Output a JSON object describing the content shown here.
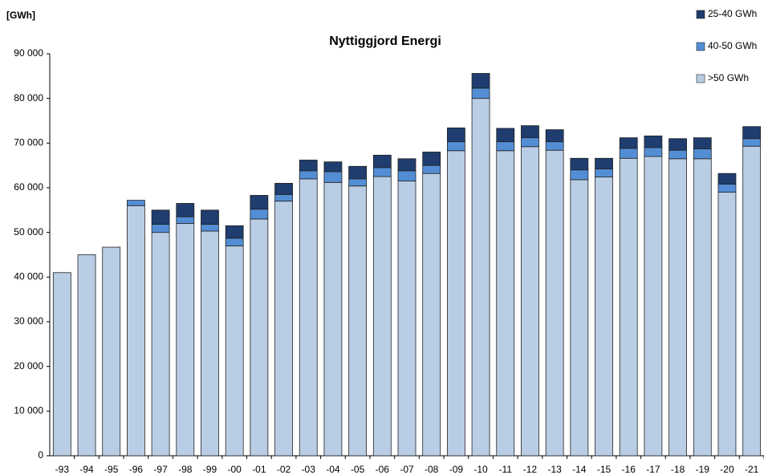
{
  "chart_data": {
    "type": "stacked_bar",
    "title": "Nyttiggjord Energi",
    "y_axis_label": "[GWh]",
    "categories": [
      "-93",
      "-94",
      "-95",
      "-96",
      "-97",
      "-98",
      "-99",
      "-00",
      "-01",
      "-02",
      "-03",
      "-04",
      "-05",
      "-06",
      "-07",
      "-08",
      "-09",
      "-10",
      "-11",
      "-12",
      "-13",
      "-14",
      "-15",
      "-16",
      "-17",
      "-18",
      "-19",
      "-20",
      "-21"
    ],
    "series": [
      {
        "name": ">50 GWh",
        "color": "#b9cde5",
        "values": [
          41000,
          45000,
          46700,
          56000,
          50000,
          52000,
          50300,
          47000,
          53000,
          57000,
          62000,
          61200,
          60400,
          62500,
          61500,
          63200,
          68300,
          80000,
          68300,
          69200,
          68400,
          61800,
          62400,
          66600,
          67000,
          66500,
          66500,
          59000,
          69300
        ]
      },
      {
        "name": "40-50 GWh",
        "color": "#538ed5",
        "values": [
          0,
          0,
          0,
          1200,
          1800,
          1500,
          1500,
          1700,
          2200,
          1500,
          1800,
          2400,
          1600,
          2000,
          2300,
          1800,
          2000,
          2300,
          2000,
          2000,
          1900,
          2200,
          1800,
          2200,
          2000,
          1900,
          2200,
          1800,
          1700
        ]
      },
      {
        "name": "25-40 GWh",
        "color": "#1f3d6e",
        "values": [
          0,
          0,
          0,
          0,
          3200,
          3000,
          3200,
          2800,
          3100,
          2500,
          2400,
          2200,
          2800,
          2800,
          2700,
          3000,
          3100,
          3300,
          3000,
          2700,
          2700,
          2600,
          2400,
          2400,
          2600,
          2600,
          2500,
          2400,
          2700
        ]
      }
    ],
    "ylim": [
      0,
      90000
    ],
    "yticks": [
      0,
      {
        "value": 10000,
        "label": "10 000"
      },
      {
        "value": 20000,
        "label": "20 000"
      },
      {
        "value": 30000,
        "label": "30 000"
      },
      {
        "value": 40000,
        "label": "40 000"
      },
      {
        "value": 50000,
        "label": "50 000"
      },
      {
        "value": 60000,
        "label": "60 000"
      },
      {
        "value": 70000,
        "label": "70 000"
      },
      {
        "value": 80000,
        "label": "80 000"
      },
      {
        "value": 90000,
        "label": "90 000"
      }
    ],
    "legend": "top-right"
  }
}
